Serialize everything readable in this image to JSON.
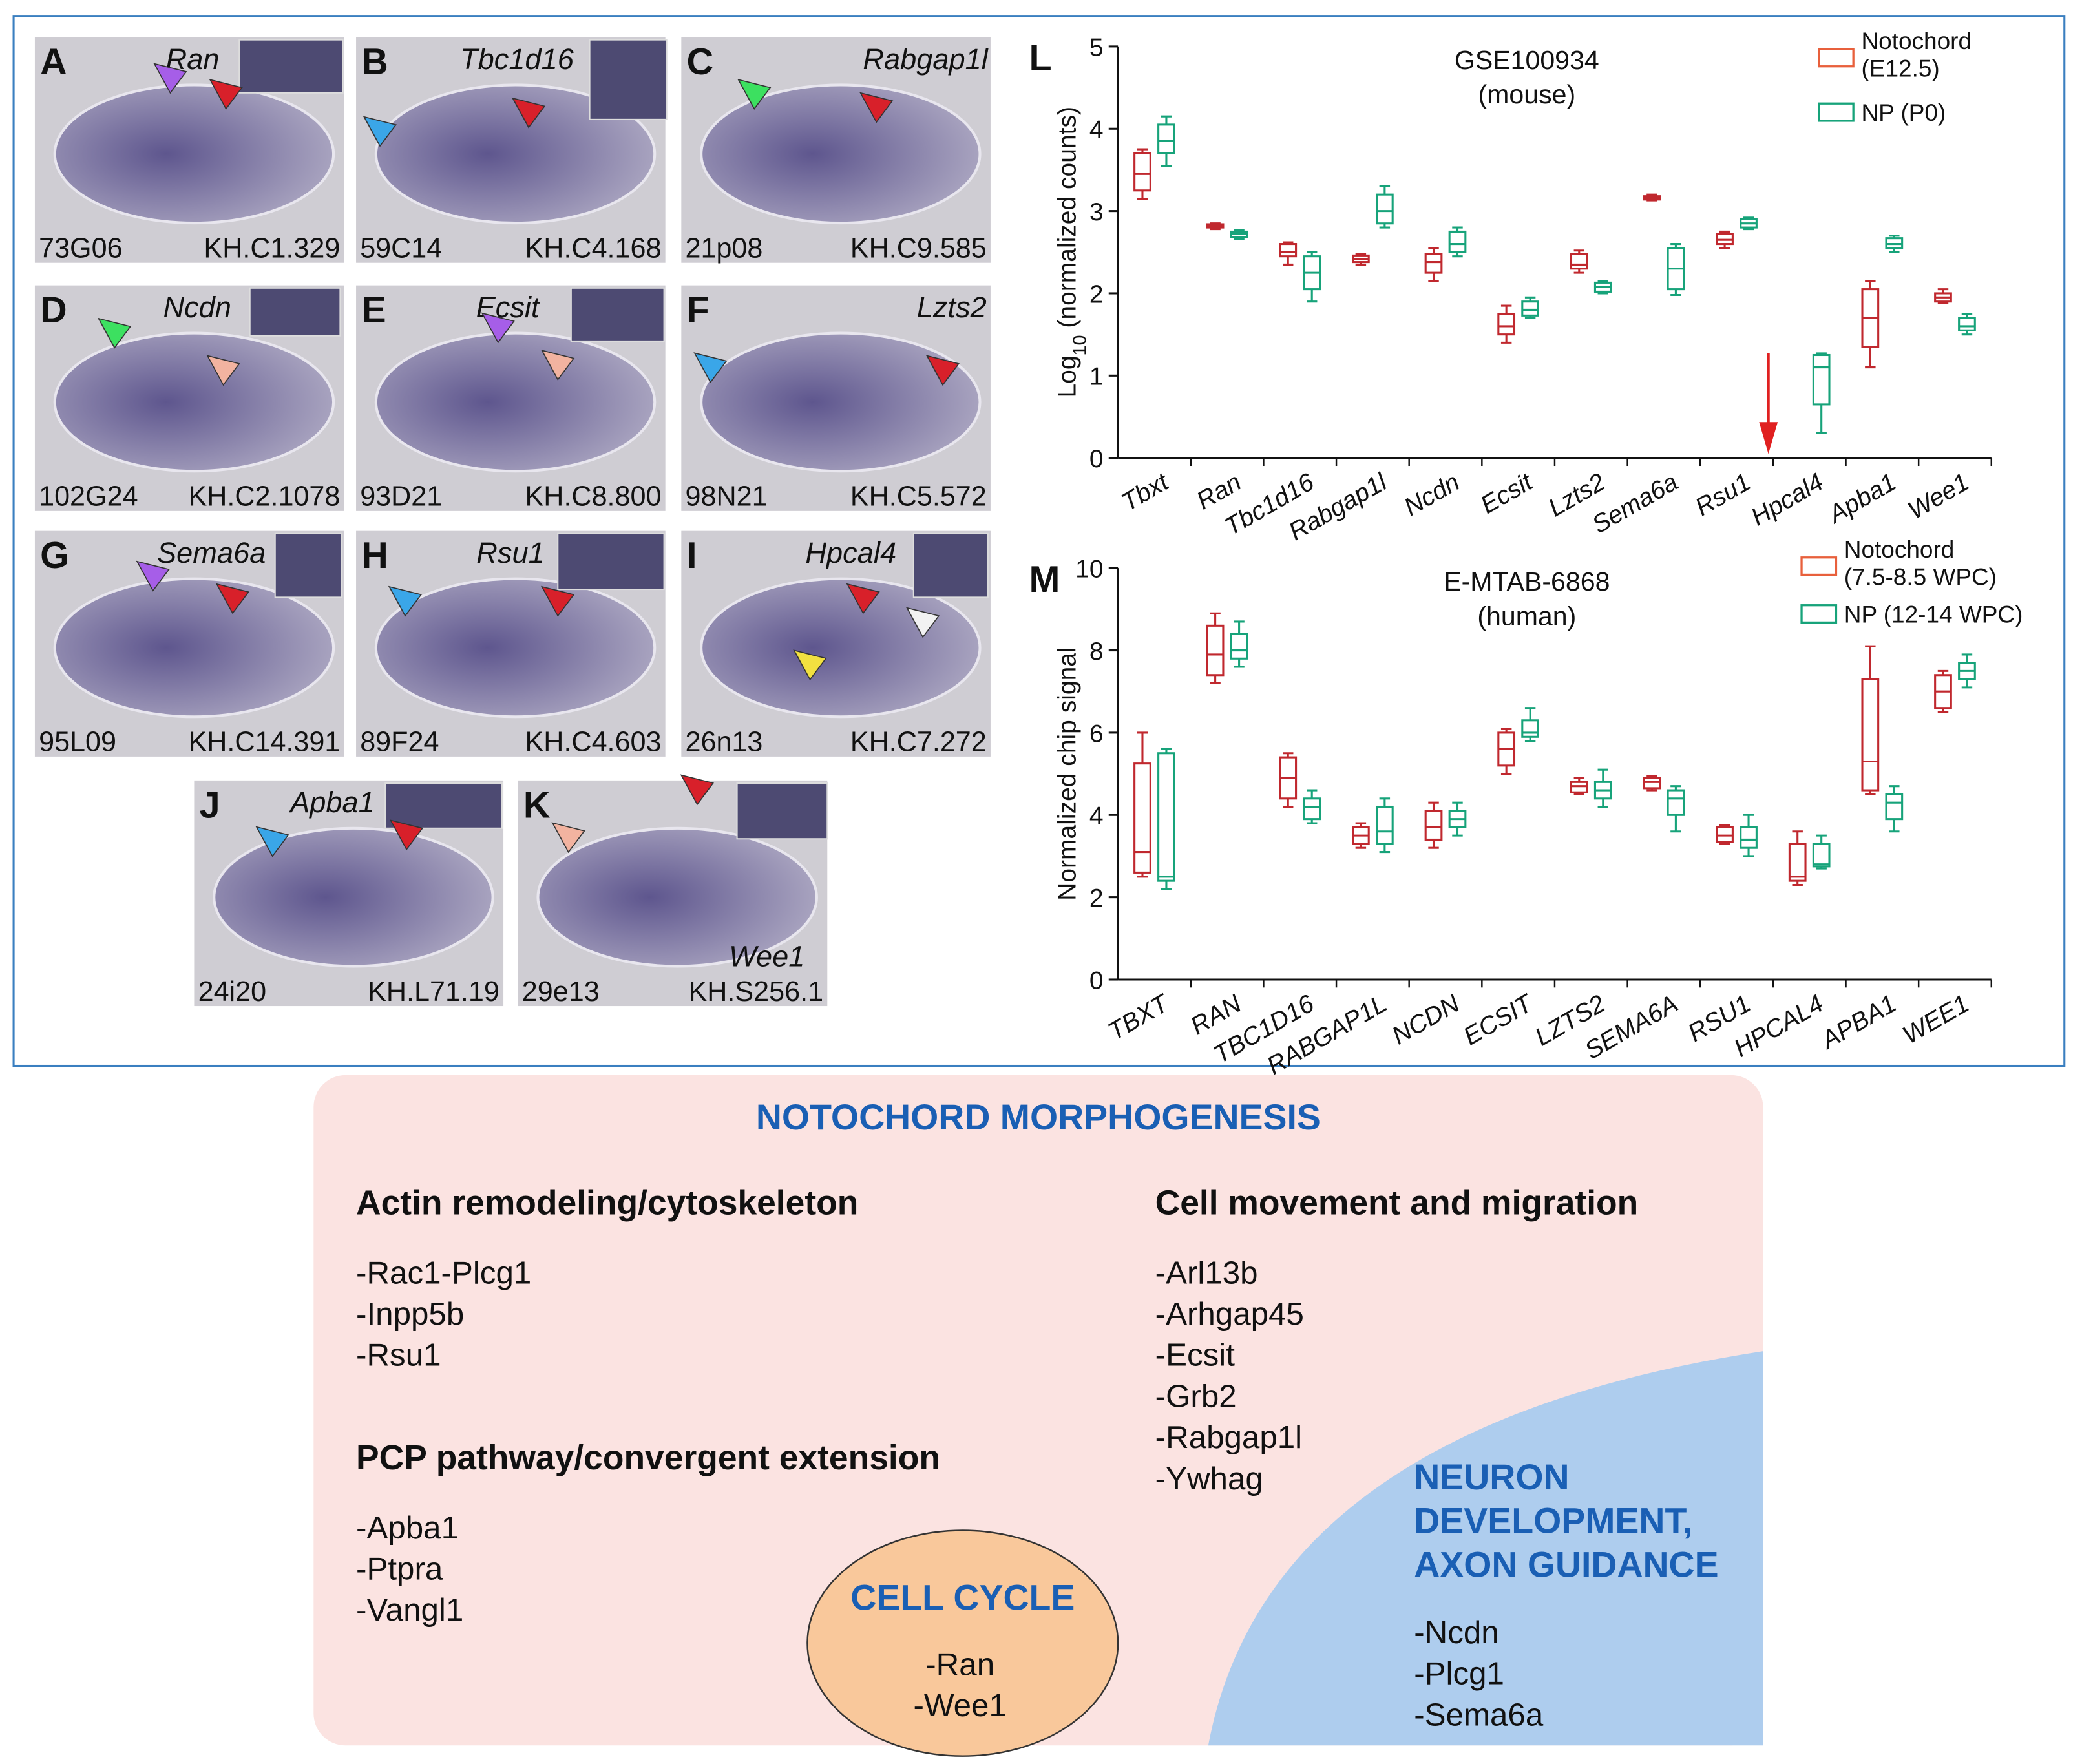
{
  "panels": [
    {
      "letter": "A",
      "gene": "Ran",
      "clone": "73G06",
      "kh": "KH.C1.329"
    },
    {
      "letter": "B",
      "gene": "Tbc1d16",
      "clone": "59C14",
      "kh": "KH.C4.168"
    },
    {
      "letter": "C",
      "gene": "Rabgap1l",
      "clone": "21p08",
      "kh": "KH.C9.585"
    },
    {
      "letter": "D",
      "gene": "Ncdn",
      "clone": "102G24",
      "kh": "KH.C2.1078"
    },
    {
      "letter": "E",
      "gene": "Ecsit",
      "clone": "93D21",
      "kh": "KH.C8.800"
    },
    {
      "letter": "F",
      "gene": "Lzts2",
      "clone": "98N21",
      "kh": "KH.C5.572"
    },
    {
      "letter": "G",
      "gene": "Sema6a",
      "clone": "95L09",
      "kh": "KH.C14.391"
    },
    {
      "letter": "H",
      "gene": "Rsu1",
      "clone": "89F24",
      "kh": "KH.C4.603"
    },
    {
      "letter": "I",
      "gene": "Hpcal4",
      "clone": "26n13",
      "kh": "KH.C7.272"
    },
    {
      "letter": "J",
      "gene": "Apba1",
      "clone": "24i20",
      "kh": "KH.L71.19"
    },
    {
      "letter": "K",
      "gene": "Wee1",
      "clone": "29e13",
      "kh": "KH.S256.1"
    }
  ],
  "chart_data": [
    {
      "type": "box",
      "panel_label": "L",
      "title": "GSE100934",
      "subtitle": "(mouse)",
      "ylabel": "Log",
      "ylabel_subscript": "10",
      "ylabel_rest": " (normalized counts)",
      "categories": [
        "Tbxt",
        "Ran",
        "Tbc1d16",
        "Rabgap1l",
        "Ncdn",
        "Ecsit",
        "Lzts2",
        "Sema6a",
        "Rsu1",
        "Hpcal4",
        "Apba1",
        "Wee1"
      ],
      "ylim": [
        0,
        5
      ],
      "yticks": [
        0,
        1,
        2,
        3,
        4,
        5
      ],
      "series": [
        {
          "name": "Notochord\n(E12.5)",
          "color": "#c0282e",
          "values": [
            [
              3.15,
              3.25,
              3.45,
              3.7,
              3.75
            ],
            [
              2.78,
              2.8,
              2.82,
              2.84,
              2.85
            ],
            [
              2.35,
              2.45,
              2.5,
              2.6,
              2.62
            ],
            [
              2.35,
              2.38,
              2.42,
              2.46,
              2.48
            ],
            [
              2.15,
              2.25,
              2.38,
              2.48,
              2.55
            ],
            [
              1.4,
              1.5,
              1.6,
              1.75,
              1.85
            ],
            [
              2.25,
              2.3,
              2.35,
              2.48,
              2.52
            ],
            [
              3.13,
              3.14,
              3.16,
              3.18,
              3.2
            ],
            [
              2.55,
              2.6,
              2.65,
              2.72,
              2.75
            ],
            null,
            [
              1.1,
              1.35,
              1.7,
              2.05,
              2.15
            ],
            [
              1.88,
              1.9,
              1.95,
              2.0,
              2.05
            ]
          ]
        },
        {
          "name": "NP (P0)",
          "color": "#17a37a",
          "values": [
            [
              3.55,
              3.7,
              3.85,
              4.05,
              4.15
            ],
            [
              2.66,
              2.68,
              2.72,
              2.75,
              2.77
            ],
            [
              1.9,
              2.05,
              2.25,
              2.45,
              2.5
            ],
            [
              2.8,
              2.85,
              3.0,
              3.2,
              3.3
            ],
            [
              2.45,
              2.5,
              2.6,
              2.75,
              2.8
            ],
            [
              1.7,
              1.73,
              1.8,
              1.9,
              1.95
            ],
            [
              2.0,
              2.02,
              2.08,
              2.13,
              2.15
            ],
            [
              1.98,
              2.05,
              2.3,
              2.55,
              2.6
            ],
            [
              2.78,
              2.8,
              2.85,
              2.9,
              2.92
            ],
            [
              0.3,
              0.65,
              1.1,
              1.25,
              1.27
            ],
            [
              2.5,
              2.55,
              2.6,
              2.67,
              2.7
            ],
            [
              1.5,
              1.55,
              1.6,
              1.7,
              1.75
            ]
          ]
        }
      ]
    },
    {
      "type": "box",
      "panel_label": "M",
      "title": "E-MTAB-6868",
      "subtitle": "(human)",
      "ylabel": "Normalized chip signal",
      "categories": [
        "TBXT",
        "RAN",
        "TBC1D16",
        "RABGAP1L",
        "NCDN",
        "ECSIT",
        "LZTS2",
        "SEMA6A",
        "RSU1",
        "HPCAL4",
        "APBA1",
        "WEE1"
      ],
      "ylim": [
        0,
        10
      ],
      "yticks": [
        0,
        2,
        4,
        6,
        8,
        10
      ],
      "series": [
        {
          "name": "Notochord\n(7.5-8.5 WPC)",
          "color": "#c0282e",
          "values": [
            [
              2.5,
              2.6,
              3.1,
              5.25,
              6.0
            ],
            [
              7.2,
              7.4,
              7.9,
              8.6,
              8.9
            ],
            [
              4.2,
              4.4,
              4.9,
              5.4,
              5.5
            ],
            [
              3.2,
              3.3,
              3.5,
              3.7,
              3.8
            ],
            [
              3.2,
              3.4,
              3.7,
              4.1,
              4.3
            ],
            [
              5.0,
              5.2,
              5.6,
              6.0,
              6.1
            ],
            [
              4.5,
              4.55,
              4.7,
              4.8,
              4.9
            ],
            [
              4.6,
              4.65,
              4.8,
              4.9,
              4.95
            ],
            [
              3.3,
              3.35,
              3.5,
              3.7,
              3.75
            ],
            [
              2.3,
              2.4,
              2.5,
              3.3,
              3.6
            ],
            [
              4.5,
              4.6,
              5.3,
              7.3,
              8.1
            ],
            [
              6.5,
              6.6,
              7.0,
              7.4,
              7.5
            ]
          ]
        },
        {
          "name": "NP (12-14 WPC)",
          "color": "#17a37a",
          "values": [
            [
              2.2,
              2.4,
              2.5,
              5.5,
              5.6
            ],
            [
              7.6,
              7.8,
              8.0,
              8.4,
              8.7
            ],
            [
              3.8,
              3.9,
              4.2,
              4.4,
              4.6
            ],
            [
              3.1,
              3.3,
              3.6,
              4.2,
              4.4
            ],
            [
              3.5,
              3.7,
              3.9,
              4.1,
              4.3
            ],
            [
              5.8,
              5.9,
              6.0,
              6.3,
              6.6
            ],
            [
              4.2,
              4.4,
              4.6,
              4.8,
              5.1
            ],
            [
              3.6,
              4.0,
              4.4,
              4.6,
              4.7
            ],
            [
              3.0,
              3.2,
              3.4,
              3.7,
              4.0
            ],
            [
              2.7,
              2.75,
              2.8,
              3.3,
              3.5
            ],
            [
              3.6,
              3.9,
              4.3,
              4.5,
              4.7
            ],
            [
              7.1,
              7.3,
              7.5,
              7.7,
              7.9
            ]
          ]
        }
      ]
    }
  ],
  "diagram": {
    "title": "NOTOCHORD MORPHOGENESIS",
    "groups": [
      {
        "heading": "Actin remodeling/cytoskeleton",
        "items": [
          "-Rac1-Plcg1",
          "-Inpp5b",
          "-Rsu1"
        ]
      },
      {
        "heading": "PCP pathway/convergent extension",
        "items": [
          "-Apba1",
          "-Ptpra",
          "-Vangl1"
        ]
      },
      {
        "heading": "Cell movement and migration",
        "items": [
          "-Arl13b",
          "-Arhgap45",
          "-Ecsit",
          "-Grb2",
          "-Rabgap1l",
          "-Ywhag"
        ]
      }
    ],
    "cell_cycle": {
      "heading": "CELL CYCLE",
      "items": [
        "-Ran",
        "-Wee1"
      ]
    },
    "neuron": {
      "heading": [
        "NEURON",
        "DEVELOPMENT,",
        "AXON GUIDANCE"
      ],
      "items": [
        "-Ncdn",
        "-Plcg1",
        "-Sema6a"
      ]
    }
  }
}
